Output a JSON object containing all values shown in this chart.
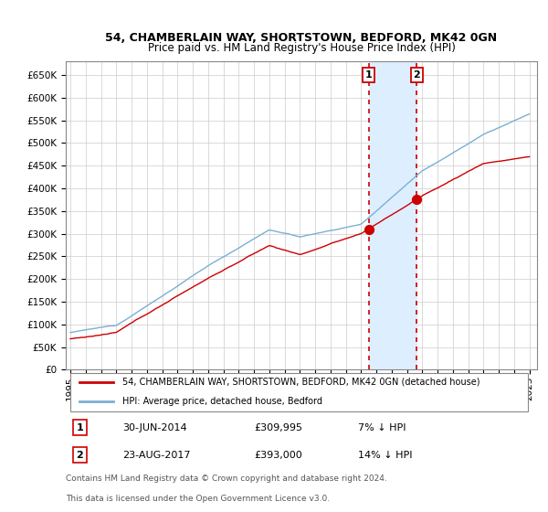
{
  "title1": "54, CHAMBERLAIN WAY, SHORTSTOWN, BEDFORD, MK42 0GN",
  "title2": "Price paid vs. HM Land Registry's House Price Index (HPI)",
  "legend_label1": "54, CHAMBERLAIN WAY, SHORTSTOWN, BEDFORD, MK42 0GN (detached house)",
  "legend_label2": "HPI: Average price, detached house, Bedford",
  "marker1_date": "30-JUN-2014",
  "marker1_price": "£309,995",
  "marker1_note": "7% ↓ HPI",
  "marker2_date": "23-AUG-2017",
  "marker2_price": "£393,000",
  "marker2_note": "14% ↓ HPI",
  "footer1": "Contains HM Land Registry data © Crown copyright and database right 2024.",
  "footer2": "This data is licensed under the Open Government Licence v3.0.",
  "red_color": "#cc0000",
  "blue_color": "#7ab0d4",
  "shade_color": "#ddeeff",
  "ylim_max": 680000,
  "yticks": [
    0,
    50000,
    100000,
    150000,
    200000,
    250000,
    300000,
    350000,
    400000,
    450000,
    500000,
    550000,
    600000,
    650000
  ],
  "marker1_x": 2014.5,
  "marker2_x": 2017.65
}
